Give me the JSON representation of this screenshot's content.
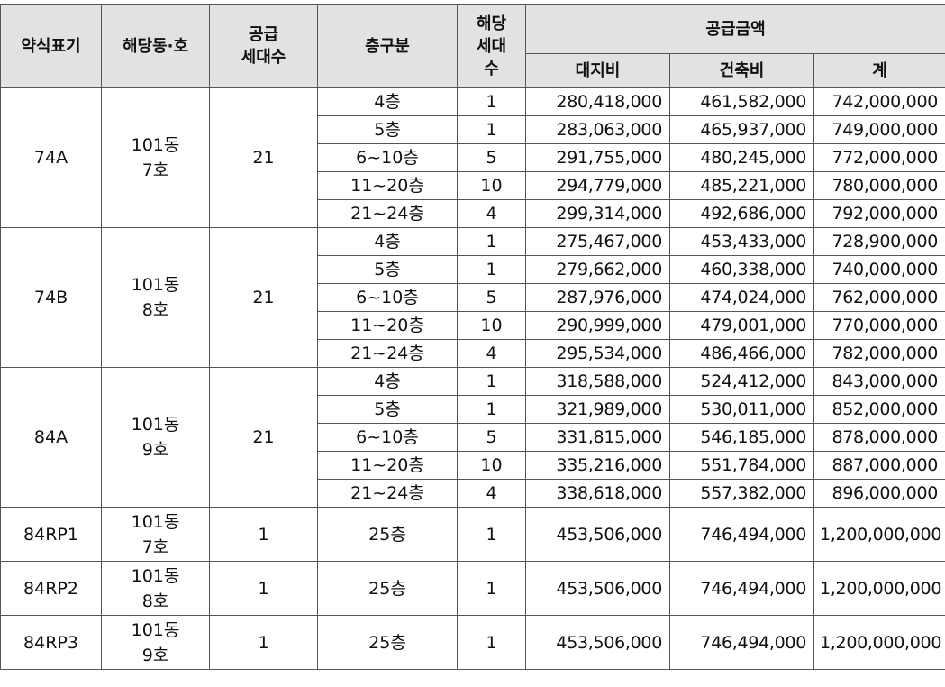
{
  "headers": {
    "abbrev": "약식표기",
    "unit": "해당동·호",
    "supply_count_l1": "공급",
    "supply_count_l2": "세대수",
    "floor": "층구분",
    "units_l1": "해당",
    "units_l2": "세대",
    "units_l3": "수",
    "price": "공급금액",
    "land": "대지비",
    "build": "건축비",
    "total": "계"
  },
  "groups": [
    {
      "abbrev": "74A",
      "dong": "101동",
      "ho": "7호",
      "count": "21",
      "rows": [
        {
          "floor": "4층",
          "units": "1",
          "land": "280,418,000",
          "build": "461,582,000",
          "total": "742,000,000"
        },
        {
          "floor": "5층",
          "units": "1",
          "land": "283,063,000",
          "build": "465,937,000",
          "total": "749,000,000"
        },
        {
          "floor": "6~10층",
          "units": "5",
          "land": "291,755,000",
          "build": "480,245,000",
          "total": "772,000,000"
        },
        {
          "floor": "11~20층",
          "units": "10",
          "land": "294,779,000",
          "build": "485,221,000",
          "total": "780,000,000"
        },
        {
          "floor": "21~24층",
          "units": "4",
          "land": "299,314,000",
          "build": "492,686,000",
          "total": "792,000,000"
        }
      ]
    },
    {
      "abbrev": "74B",
      "dong": "101동",
      "ho": "8호",
      "count": "21",
      "rows": [
        {
          "floor": "4층",
          "units": "1",
          "land": "275,467,000",
          "build": "453,433,000",
          "total": "728,900,000"
        },
        {
          "floor": "5층",
          "units": "1",
          "land": "279,662,000",
          "build": "460,338,000",
          "total": "740,000,000"
        },
        {
          "floor": "6~10층",
          "units": "5",
          "land": "287,976,000",
          "build": "474,024,000",
          "total": "762,000,000"
        },
        {
          "floor": "11~20층",
          "units": "10",
          "land": "290,999,000",
          "build": "479,001,000",
          "total": "770,000,000"
        },
        {
          "floor": "21~24층",
          "units": "4",
          "land": "295,534,000",
          "build": "486,466,000",
          "total": "782,000,000"
        }
      ]
    },
    {
      "abbrev": "84A",
      "dong": "101동",
      "ho": "9호",
      "count": "21",
      "rows": [
        {
          "floor": "4층",
          "units": "1",
          "land": "318,588,000",
          "build": "524,412,000",
          "total": "843,000,000"
        },
        {
          "floor": "5층",
          "units": "1",
          "land": "321,989,000",
          "build": "530,011,000",
          "total": "852,000,000"
        },
        {
          "floor": "6~10층",
          "units": "5",
          "land": "331,815,000",
          "build": "546,185,000",
          "total": "878,000,000"
        },
        {
          "floor": "11~20층",
          "units": "10",
          "land": "335,216,000",
          "build": "551,784,000",
          "total": "887,000,000"
        },
        {
          "floor": "21~24층",
          "units": "4",
          "land": "338,618,000",
          "build": "557,382,000",
          "total": "896,000,000"
        }
      ]
    }
  ],
  "rp_rows": [
    {
      "abbrev": "84RP1",
      "dong": "101동",
      "ho": "7호",
      "count": "1",
      "floor": "25층",
      "units": "1",
      "land": "453,506,000",
      "build": "746,494,000",
      "total": "1,200,000,000"
    },
    {
      "abbrev": "84RP2",
      "dong": "101동",
      "ho": "8호",
      "count": "1",
      "floor": "25층",
      "units": "1",
      "land": "453,506,000",
      "build": "746,494,000",
      "total": "1,200,000,000"
    },
    {
      "abbrev": "84RP3",
      "dong": "101동",
      "ho": "9호",
      "count": "1",
      "floor": "25층",
      "units": "1",
      "land": "453,506,000",
      "build": "746,494,000",
      "total": "1,200,000,000"
    }
  ]
}
